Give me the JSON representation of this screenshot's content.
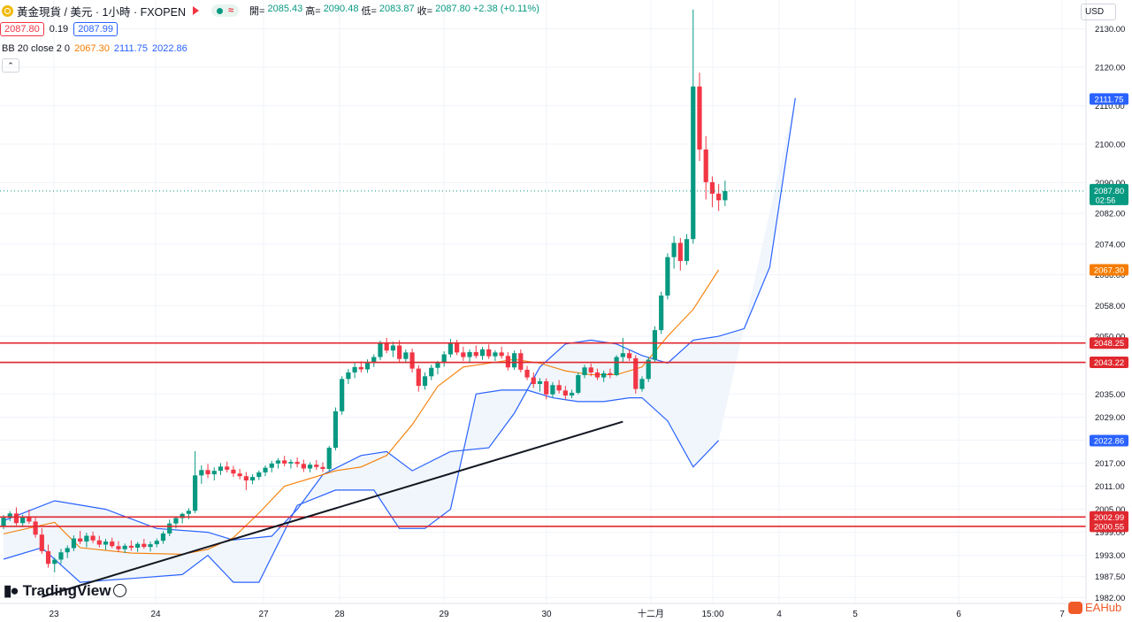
{
  "header": {
    "symbol_title": "黃金現貨 / 美元 · 1小時 · FXOPEN",
    "pill_wave": "≈",
    "ohlc": [
      {
        "label": "開=",
        "value": "2085.43"
      },
      {
        "label": "高=",
        "value": "2090.48"
      },
      {
        "label": "低=",
        "value": "2083.87"
      },
      {
        "label": "收=",
        "value": "2087.80"
      },
      {
        "label": "",
        "value": "+2.38 (+0.11%)"
      }
    ],
    "bid": "2087.80",
    "spread": "0.19",
    "ask": "2087.99",
    "currency": "USD"
  },
  "indicator": {
    "name": "BB 20 close 2 0",
    "basis": "2067.30",
    "upper": "2111.75",
    "lower": "2022.86",
    "colors": {
      "basis": "#f57c00",
      "band": "#2962ff",
      "fill": "#eef4fb"
    }
  },
  "watermark": "TradingView",
  "brand": "EAHub",
  "colors": {
    "up": "#089981",
    "down": "#f23645",
    "hline": "#e0282f",
    "trend": "#131722"
  },
  "chart_data": {
    "type": "candlestick",
    "x_tick_labels": [
      "23",
      "24",
      "27",
      "28",
      "29",
      "30",
      "十二月",
      "15:00",
      "4",
      "5",
      "6",
      "7"
    ],
    "y_tick_labels": [
      "2130.00",
      "2120.00",
      "2110.00",
      "2100.00",
      "2090.00",
      "2082.00",
      "2074.00",
      "2066.00",
      "2058.00",
      "2050.00",
      "2043.00",
      "2035.00",
      "2029.00",
      "2023.00",
      "2017.00",
      "2011.00",
      "2005.00",
      "1999.00",
      "1993.00",
      "1987.50",
      "1982.00"
    ],
    "y_range": [
      1980.5,
      2137.5
    ],
    "last_price": "2087.80",
    "countdown": "02:56",
    "horizontal_levels": [
      {
        "price": 2048.25,
        "label": "2048.25"
      },
      {
        "price": 2043.22,
        "label": "2043.22"
      },
      {
        "price": 2002.99,
        "label": "2002.99"
      },
      {
        "price": 2000.55,
        "label": "2000.55"
      }
    ],
    "price_tags": [
      {
        "price": 2111.75,
        "label": "2111.75",
        "color": "#2962ff"
      },
      {
        "price": 2067.3,
        "label": "2067.30",
        "color": "#f57c00"
      },
      {
        "price": 2022.86,
        "label": "2022.86",
        "color": "#2962ff"
      }
    ],
    "trendline": {
      "from": {
        "bar": 6,
        "price": 1982.2
      },
      "to": {
        "bar": 97,
        "price": 2027.8
      }
    },
    "bb_upper": [
      [
        0,
        2002
      ],
      [
        8,
        2007.2
      ],
      [
        16,
        2005
      ],
      [
        24,
        2000
      ],
      [
        32,
        1999
      ],
      [
        36,
        1997
      ],
      [
        42,
        1998
      ],
      [
        46,
        2005
      ],
      [
        50,
        2014
      ],
      [
        56,
        2019
      ],
      [
        60,
        2020
      ],
      [
        64,
        2015
      ],
      [
        70,
        2020
      ],
      [
        76,
        2021
      ],
      [
        80,
        2030
      ],
      [
        84,
        2042
      ],
      [
        88,
        2048
      ],
      [
        92,
        2049
      ],
      [
        96,
        2048
      ],
      [
        100,
        2045
      ],
      [
        104,
        2043
      ],
      [
        108,
        2049
      ],
      [
        112,
        2050
      ],
      [
        116,
        2052
      ],
      [
        120,
        2068
      ],
      [
        124,
        2112
      ]
    ],
    "bb_basis": [
      [
        0,
        1998.6
      ],
      [
        8,
        2001.6
      ],
      [
        12,
        1995
      ],
      [
        20,
        1993.6
      ],
      [
        28,
        1993.3
      ],
      [
        32,
        1994.6
      ],
      [
        36,
        1997.6
      ],
      [
        40,
        2004
      ],
      [
        44,
        2011
      ],
      [
        48,
        2013
      ],
      [
        52,
        2015
      ],
      [
        56,
        2016
      ],
      [
        60,
        2019
      ],
      [
        64,
        2027
      ],
      [
        68,
        2037
      ],
      [
        72,
        2042
      ],
      [
        76,
        2043
      ],
      [
        80,
        2044
      ],
      [
        84,
        2043
      ],
      [
        88,
        2041
      ],
      [
        92,
        2040
      ],
      [
        96,
        2040
      ],
      [
        100,
        2042
      ],
      [
        104,
        2050
      ],
      [
        108,
        2057
      ],
      [
        112,
        2067.3
      ]
    ],
    "bb_lower": [
      [
        0,
        1992
      ],
      [
        6,
        1995
      ],
      [
        12,
        1986
      ],
      [
        20,
        1987
      ],
      [
        28,
        1988
      ],
      [
        32,
        1993
      ],
      [
        36,
        1986
      ],
      [
        40,
        1986
      ],
      [
        46,
        2006
      ],
      [
        52,
        2010
      ],
      [
        58,
        2010
      ],
      [
        62,
        2000
      ],
      [
        66,
        2000
      ],
      [
        70,
        2005
      ],
      [
        74,
        2035
      ],
      [
        78,
        2036
      ],
      [
        82,
        2036
      ],
      [
        86,
        2034
      ],
      [
        90,
        2033
      ],
      [
        94,
        2033
      ],
      [
        98,
        2034
      ],
      [
        100,
        2034
      ],
      [
        104,
        2028
      ],
      [
        108,
        2016
      ],
      [
        112,
        2022.9
      ]
    ],
    "candles": [
      [
        2000.5,
        2003.5,
        1999.8,
        2002.8
      ],
      [
        2002.8,
        2004.5,
        2001.9,
        2003.9
      ],
      [
        2003.9,
        2005.5,
        2000.8,
        2001.4
      ],
      [
        2001.4,
        2003.6,
        2000.4,
        2003.1
      ],
      [
        2003.1,
        2004.9,
        2001.2,
        2001.8
      ],
      [
        2001.8,
        2003.1,
        1997.6,
        1998.4
      ],
      [
        1998.4,
        2000.1,
        1993.4,
        1994.1
      ],
      [
        1994.1,
        1995.8,
        1989.8,
        1990.8
      ],
      [
        1990.8,
        1992.4,
        1988.6,
        1991.9
      ],
      [
        1991.9,
        1994.7,
        1990.8,
        1993.8
      ],
      [
        1993.8,
        1995.6,
        1992.3,
        1994.9
      ],
      [
        1994.9,
        1998.2,
        1994.1,
        1997.4
      ],
      [
        1997.4,
        1999.4,
        1995.9,
        1996.6
      ],
      [
        1996.6,
        1998.9,
        1995.1,
        1998.1
      ],
      [
        1998.1,
        1999.2,
        1996.2,
        1996.9
      ],
      [
        1996.9,
        1998.1,
        1995.1,
        1995.8
      ],
      [
        1995.8,
        1997.3,
        1994.4,
        1996.6
      ],
      [
        1996.6,
        1997.6,
        1994.9,
        1995.4
      ],
      [
        1995.4,
        1996.7,
        1993.9,
        1994.6
      ],
      [
        1994.6,
        1996.1,
        1993.6,
        1995.5
      ],
      [
        1995.5,
        1996.9,
        1994.2,
        1995.0
      ],
      [
        1995.0,
        1996.5,
        1993.9,
        1996.0
      ],
      [
        1996.0,
        1997.3,
        1994.7,
        1995.2
      ],
      [
        1995.2,
        1996.6,
        1994.0,
        1995.9
      ],
      [
        1995.9,
        1997.4,
        1995.1,
        1996.8
      ],
      [
        1996.8,
        1999.3,
        1996.0,
        1998.7
      ],
      [
        1998.7,
        2002.3,
        1998.0,
        2001.3
      ],
      [
        2001.3,
        2003.2,
        2000.0,
        2002.7
      ],
      [
        2002.7,
        2004.1,
        2001.3,
        2003.8
      ],
      [
        2003.8,
        2005.3,
        2002.4,
        2004.6
      ],
      [
        2004.6,
        2020.1,
        2004.0,
        2013.8
      ],
      [
        2013.8,
        2016.4,
        2011.6,
        2015.2
      ],
      [
        2015.2,
        2016.8,
        2013.1,
        2014.1
      ],
      [
        2014.1,
        2015.9,
        2012.5,
        2015.0
      ],
      [
        2015.0,
        2017.0,
        2013.9,
        2016.1
      ],
      [
        2016.1,
        2017.4,
        2014.6,
        2015.3
      ],
      [
        2015.3,
        2016.3,
        2013.4,
        2014.3
      ],
      [
        2014.3,
        2015.5,
        2012.8,
        2013.6
      ],
      [
        2013.6,
        2014.7,
        2010.0,
        2012.5
      ],
      [
        2012.5,
        2014.1,
        2011.5,
        2013.4
      ],
      [
        2013.4,
        2015.1,
        2012.6,
        2014.6
      ],
      [
        2014.6,
        2016.4,
        2013.6,
        2015.8
      ],
      [
        2015.8,
        2017.6,
        2014.6,
        2016.9
      ],
      [
        2016.9,
        2018.3,
        2015.6,
        2017.7
      ],
      [
        2017.7,
        2018.9,
        2016.2,
        2016.9
      ],
      [
        2016.9,
        2018.0,
        2015.6,
        2017.3
      ],
      [
        2017.3,
        2018.5,
        2015.9,
        2016.8
      ],
      [
        2016.8,
        2017.9,
        2014.7,
        2015.6
      ],
      [
        2015.6,
        2017.2,
        2014.6,
        2016.6
      ],
      [
        2016.6,
        2017.8,
        2015.2,
        2016.0
      ],
      [
        2016.0,
        2017.2,
        2014.7,
        2015.5
      ],
      [
        2015.5,
        2021.5,
        2015.0,
        2021.0
      ],
      [
        2021.0,
        2031.5,
        2020.3,
        2030.5
      ],
      [
        2030.5,
        2039.6,
        2029.6,
        2038.9
      ],
      [
        2038.9,
        2041.5,
        2037.6,
        2040.6
      ],
      [
        2040.6,
        2043.0,
        2039.1,
        2042.0
      ],
      [
        2042.0,
        2043.5,
        2040.6,
        2041.4
      ],
      [
        2041.4,
        2044.0,
        2040.5,
        2043.1
      ],
      [
        2043.1,
        2045.3,
        2042.0,
        2044.6
      ],
      [
        2044.6,
        2048.9,
        2043.8,
        2048.1
      ],
      [
        2048.1,
        2049.6,
        2045.6,
        2046.3
      ],
      [
        2046.3,
        2048.6,
        2044.6,
        2047.6
      ],
      [
        2047.6,
        2049.0,
        2043.1,
        2044.1
      ],
      [
        2044.1,
        2046.6,
        2043.0,
        2045.8
      ],
      [
        2045.8,
        2046.8,
        2040.6,
        2041.6
      ],
      [
        2041.6,
        2042.5,
        2035.6,
        2037.1
      ],
      [
        2037.1,
        2040.6,
        2036.1,
        2039.6
      ],
      [
        2039.6,
        2042.6,
        2038.6,
        2041.8
      ],
      [
        2041.8,
        2043.6,
        2040.1,
        2043.1
      ],
      [
        2043.1,
        2046.1,
        2042.1,
        2045.3
      ],
      [
        2045.3,
        2049.3,
        2044.5,
        2048.1
      ],
      [
        2048.1,
        2049.1,
        2045.1,
        2045.8
      ],
      [
        2045.8,
        2047.3,
        2043.6,
        2044.6
      ],
      [
        2044.6,
        2046.6,
        2043.3,
        2045.9
      ],
      [
        2045.9,
        2047.6,
        2044.3,
        2044.9
      ],
      [
        2044.9,
        2047.2,
        2043.9,
        2046.6
      ],
      [
        2046.6,
        2047.9,
        2044.1,
        2044.8
      ],
      [
        2044.8,
        2046.4,
        2043.6,
        2045.8
      ],
      [
        2045.8,
        2047.3,
        2044.2,
        2044.9
      ],
      [
        2044.9,
        2045.9,
        2041.1,
        2041.9
      ],
      [
        2041.9,
        2046.3,
        2041.3,
        2045.6
      ],
      [
        2045.6,
        2046.6,
        2040.6,
        2041.3
      ],
      [
        2041.3,
        2042.3,
        2038.6,
        2039.3
      ],
      [
        2039.3,
        2040.6,
        2036.6,
        2037.6
      ],
      [
        2037.6,
        2039.1,
        2035.6,
        2038.3
      ],
      [
        2038.3,
        2039.1,
        2033.6,
        2034.9
      ],
      [
        2034.9,
        2038.1,
        2034.1,
        2037.3
      ],
      [
        2037.3,
        2038.6,
        2035.1,
        2035.9
      ],
      [
        2035.9,
        2037.1,
        2033.6,
        2034.6
      ],
      [
        2034.6,
        2036.1,
        2033.9,
        2035.3
      ],
      [
        2035.3,
        2040.6,
        2034.9,
        2039.9
      ],
      [
        2039.9,
        2042.6,
        2039.1,
        2041.9
      ],
      [
        2041.9,
        2042.9,
        2039.6,
        2040.6
      ],
      [
        2040.6,
        2041.6,
        2038.6,
        2039.3
      ],
      [
        2039.3,
        2041.1,
        2038.1,
        2040.4
      ],
      [
        2040.4,
        2041.6,
        2039.1,
        2039.9
      ],
      [
        2039.9,
        2045.1,
        2039.6,
        2044.6
      ],
      [
        2044.6,
        2049.6,
        2043.1,
        2045.6
      ],
      [
        2045.6,
        2046.6,
        2043.6,
        2044.3
      ],
      [
        2044.3,
        2045.1,
        2035.1,
        2036.3
      ],
      [
        2036.3,
        2039.6,
        2035.6,
        2038.9
      ],
      [
        2038.9,
        2044.6,
        2038.1,
        2043.9
      ],
      [
        2043.9,
        2052.6,
        2043.1,
        2051.6
      ],
      [
        2051.6,
        2061.6,
        2050.6,
        2060.6
      ],
      [
        2060.6,
        2071.6,
        2059.6,
        2070.6
      ],
      [
        2070.6,
        2076.1,
        2067.6,
        2074.3
      ],
      [
        2074.3,
        2075.6,
        2067.1,
        2069.6
      ],
      [
        2069.6,
        2076.6,
        2068.6,
        2075.3
      ],
      [
        2075.3,
        2135.0,
        2074.1,
        2115.0
      ],
      [
        2115.0,
        2118.6,
        2095.6,
        2098.6
      ],
      [
        2098.6,
        2102.1,
        2085.6,
        2090.1
      ],
      [
        2090.1,
        2091.6,
        2083.6,
        2087.1
      ],
      [
        2087.1,
        2089.6,
        2082.6,
        2085.4
      ],
      [
        2085.4,
        2090.5,
        2083.9,
        2087.8
      ]
    ]
  }
}
